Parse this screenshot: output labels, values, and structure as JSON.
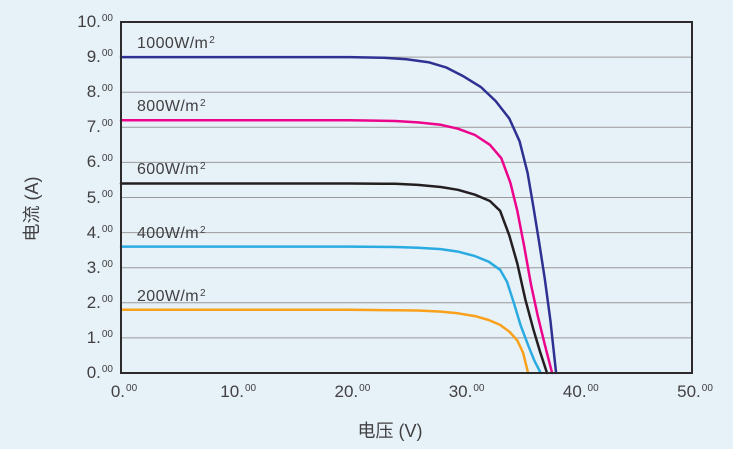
{
  "chart_data": {
    "type": "line",
    "title": "",
    "xlabel": "电压 (V)",
    "ylabel": "电流 (A)",
    "xlim": [
      0,
      50
    ],
    "ylim": [
      0,
      10
    ],
    "x_ticks": [
      0,
      10,
      20,
      30,
      40,
      50
    ],
    "y_ticks": [
      0,
      1,
      2,
      3,
      4,
      5,
      6,
      7,
      8,
      9,
      10
    ],
    "tick_decimal_suffix": "00",
    "grid": "horizontal-only",
    "legend_position": "inline-curve-labels",
    "series": [
      {
        "id": "1000wm2",
        "name": "1000W/m²",
        "label_main": "1000W/m",
        "label_sup": "2",
        "color": "#2e3192",
        "isc_amps": 9.0,
        "voc_volts": 38.1,
        "points": [
          [
            0,
            9.0
          ],
          [
            5,
            9.0
          ],
          [
            10,
            9.0
          ],
          [
            15,
            9.0
          ],
          [
            20,
            9.0
          ],
          [
            23,
            8.98
          ],
          [
            25,
            8.94
          ],
          [
            27,
            8.85
          ],
          [
            28.5,
            8.7
          ],
          [
            30,
            8.45
          ],
          [
            31.5,
            8.15
          ],
          [
            32.8,
            7.75
          ],
          [
            34,
            7.25
          ],
          [
            34.9,
            6.6
          ],
          [
            35.6,
            5.7
          ],
          [
            36.1,
            4.75
          ],
          [
            36.6,
            3.75
          ],
          [
            37.1,
            2.7
          ],
          [
            37.6,
            1.5
          ],
          [
            38.1,
            0
          ]
        ]
      },
      {
        "id": "800wm2",
        "name": "800W/m²",
        "label_main": "800W/m",
        "label_sup": "2",
        "color": "#ec048c",
        "isc_amps": 7.2,
        "voc_volts": 37.75,
        "points": [
          [
            0,
            7.2
          ],
          [
            5,
            7.2
          ],
          [
            10,
            7.2
          ],
          [
            15,
            7.2
          ],
          [
            20,
            7.2
          ],
          [
            24,
            7.18
          ],
          [
            26,
            7.14
          ],
          [
            28,
            7.07
          ],
          [
            29.5,
            6.96
          ],
          [
            31,
            6.78
          ],
          [
            32.3,
            6.5
          ],
          [
            33.3,
            6.12
          ],
          [
            34.1,
            5.42
          ],
          [
            34.7,
            4.62
          ],
          [
            35.3,
            3.62
          ],
          [
            35.9,
            2.52
          ],
          [
            36.5,
            1.62
          ],
          [
            37.1,
            0.82
          ],
          [
            37.75,
            0
          ]
        ]
      },
      {
        "id": "600wm2",
        "name": "600W/m²",
        "label_main": "600W/m",
        "label_sup": "2",
        "color": "#231f20",
        "isc_amps": 5.4,
        "voc_volts": 37.3,
        "points": [
          [
            0,
            5.4
          ],
          [
            5,
            5.4
          ],
          [
            10,
            5.4
          ],
          [
            15,
            5.4
          ],
          [
            20,
            5.4
          ],
          [
            24,
            5.39
          ],
          [
            26,
            5.36
          ],
          [
            28,
            5.3
          ],
          [
            29.5,
            5.22
          ],
          [
            31,
            5.08
          ],
          [
            32.3,
            4.9
          ],
          [
            33.2,
            4.62
          ],
          [
            34,
            3.92
          ],
          [
            34.7,
            3.12
          ],
          [
            35.4,
            2.1
          ],
          [
            36.1,
            1.25
          ],
          [
            36.7,
            0.6
          ],
          [
            37.3,
            0
          ]
        ]
      },
      {
        "id": "400wm2",
        "name": "400W/m²",
        "label_main": "400W/m",
        "label_sup": "2",
        "color": "#29abe2",
        "isc_amps": 3.6,
        "voc_volts": 36.75,
        "points": [
          [
            0,
            3.6
          ],
          [
            5,
            3.6
          ],
          [
            10,
            3.6
          ],
          [
            15,
            3.6
          ],
          [
            20,
            3.6
          ],
          [
            24,
            3.59
          ],
          [
            26,
            3.57
          ],
          [
            28,
            3.53
          ],
          [
            29.5,
            3.46
          ],
          [
            31,
            3.33
          ],
          [
            32.2,
            3.17
          ],
          [
            33.2,
            2.94
          ],
          [
            33.8,
            2.6
          ],
          [
            34.4,
            2.0
          ],
          [
            35.0,
            1.35
          ],
          [
            35.7,
            0.75
          ],
          [
            36.2,
            0.35
          ],
          [
            36.75,
            0
          ]
        ]
      },
      {
        "id": "200wm2",
        "name": "200W/m²",
        "label_main": "200W/m",
        "label_sup": "2",
        "color": "#f9a11b",
        "isc_amps": 1.8,
        "voc_volts": 35.65,
        "points": [
          [
            0,
            1.8
          ],
          [
            5,
            1.8
          ],
          [
            10,
            1.8
          ],
          [
            15,
            1.8
          ],
          [
            20,
            1.8
          ],
          [
            24,
            1.79
          ],
          [
            26,
            1.78
          ],
          [
            28,
            1.75
          ],
          [
            29.5,
            1.7
          ],
          [
            31,
            1.62
          ],
          [
            32.2,
            1.51
          ],
          [
            33.2,
            1.37
          ],
          [
            34,
            1.18
          ],
          [
            34.7,
            0.93
          ],
          [
            35.2,
            0.58
          ],
          [
            35.65,
            0
          ]
        ]
      }
    ],
    "colors": {
      "background": "#e7f1f8",
      "axis_border": "#2d2a2b",
      "gridline": "#9a9a9a",
      "text": "#414042"
    }
  }
}
